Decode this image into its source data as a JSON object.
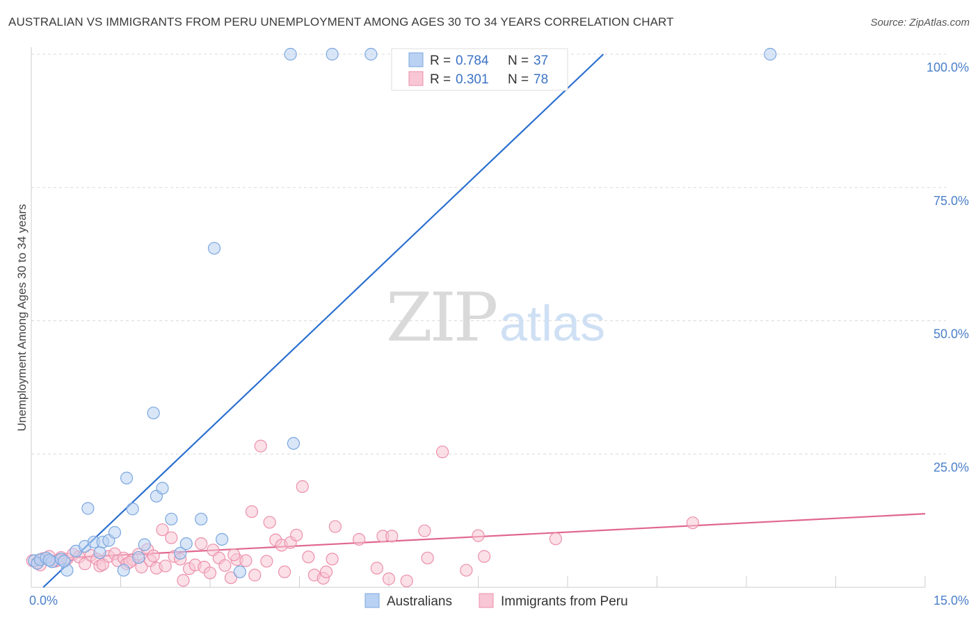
{
  "title": "AUSTRALIAN VS IMMIGRANTS FROM PERU UNEMPLOYMENT AMONG AGES 30 TO 34 YEARS CORRELATION CHART",
  "source": "Source: ZipAtlas.com",
  "watermark": {
    "zip": "ZIP",
    "atlas": "atlas"
  },
  "colors": {
    "blue_fill": "#b9d1f2",
    "blue_stroke": "#7aa6df",
    "blue_line": "#2a6fcf",
    "pink_fill": "#f8c6d4",
    "pink_stroke": "#ec8fab",
    "pink_line": "#e0668f",
    "grid": "#d8d8d8",
    "tick_text": "#4a7fc9"
  },
  "legend": [
    {
      "r_label": "R =",
      "r_value": "0.784",
      "n_label": "N =",
      "n_value": "37",
      "series": "Australians"
    },
    {
      "r_label": "R =",
      "r_value": "0.301",
      "n_label": "N =",
      "n_value": "78",
      "series": "Immigrants from Peru"
    }
  ],
  "chart_data": {
    "type": "scatter",
    "title": "AUSTRALIAN VS IMMIGRANTS FROM PERU UNEMPLOYMENT AMONG AGES 30 TO 34 YEARS CORRELATION CHART",
    "xlabel": "",
    "ylabel": "Unemployment Among Ages 30 to 34 years",
    "xlim": [
      0,
      15
    ],
    "ylim": [
      0,
      100
    ],
    "x_ticks": [
      {
        "value": 0,
        "label": "0.0%"
      },
      {
        "value": 15,
        "label": "15.0%"
      }
    ],
    "y_ticks": [
      {
        "value": 25,
        "label": "25.0%"
      },
      {
        "value": 50,
        "label": "50.0%"
      },
      {
        "value": 75,
        "label": "75.0%"
      },
      {
        "value": 100,
        "label": "100.0%"
      }
    ],
    "series": [
      {
        "name": "Australians",
        "color": "blue",
        "trendline": {
          "x": [
            0.2,
            9.6
          ],
          "y": [
            0.0,
            100.0
          ]
        },
        "points": [
          [
            0.05,
            5.0
          ],
          [
            0.1,
            4.5
          ],
          [
            0.15,
            5.2
          ],
          [
            0.25,
            5.5
          ],
          [
            0.35,
            4.8
          ],
          [
            0.5,
            5.3
          ],
          [
            0.6,
            3.2
          ],
          [
            0.55,
            4.9
          ],
          [
            0.75,
            6.8
          ],
          [
            0.9,
            7.7
          ],
          [
            0.95,
            14.8
          ],
          [
            1.05,
            8.5
          ],
          [
            1.15,
            6.5
          ],
          [
            1.2,
            8.5
          ],
          [
            1.3,
            8.8
          ],
          [
            1.4,
            10.3
          ],
          [
            1.6,
            20.5
          ],
          [
            1.55,
            3.2
          ],
          [
            1.7,
            14.7
          ],
          [
            1.9,
            8.0
          ],
          [
            2.05,
            32.7
          ],
          [
            2.1,
            17.1
          ],
          [
            2.2,
            18.6
          ],
          [
            2.35,
            12.8
          ],
          [
            2.5,
            6.4
          ],
          [
            2.6,
            8.2
          ],
          [
            2.85,
            12.8
          ],
          [
            3.2,
            9.0
          ],
          [
            3.07,
            63.6
          ],
          [
            3.5,
            2.9
          ],
          [
            4.4,
            27.0
          ],
          [
            4.35,
            100.0
          ],
          [
            5.05,
            100.0
          ],
          [
            5.7,
            100.0
          ],
          [
            12.4,
            100.0
          ],
          [
            0.3,
            5.1
          ],
          [
            1.8,
            5.6
          ]
        ]
      },
      {
        "name": "Immigrants from Peru",
        "color": "pink",
        "trendline": {
          "x": [
            0.0,
            15.0
          ],
          "y": [
            5.2,
            13.8
          ]
        },
        "points": [
          [
            0.02,
            5.0
          ],
          [
            0.1,
            4.6
          ],
          [
            0.2,
            5.4
          ],
          [
            0.3,
            5.8
          ],
          [
            0.4,
            4.9
          ],
          [
            0.5,
            5.6
          ],
          [
            0.6,
            5.3
          ],
          [
            0.7,
            6.2
          ],
          [
            0.8,
            5.7
          ],
          [
            0.9,
            4.4
          ],
          [
            1.0,
            6.0
          ],
          [
            1.1,
            5.3
          ],
          [
            1.15,
            4.0
          ],
          [
            1.2,
            4.3
          ],
          [
            1.3,
            5.8
          ],
          [
            1.4,
            6.3
          ],
          [
            1.45,
            5.0
          ],
          [
            1.55,
            5.5
          ],
          [
            1.6,
            4.4
          ],
          [
            1.7,
            5.2
          ],
          [
            1.8,
            6.2
          ],
          [
            1.85,
            3.8
          ],
          [
            1.95,
            7.1
          ],
          [
            2.0,
            5.0
          ],
          [
            2.1,
            3.6
          ],
          [
            2.2,
            10.8
          ],
          [
            2.25,
            4.0
          ],
          [
            2.35,
            9.3
          ],
          [
            2.4,
            5.8
          ],
          [
            2.5,
            5.3
          ],
          [
            2.55,
            1.3
          ],
          [
            2.65,
            3.5
          ],
          [
            2.75,
            4.2
          ],
          [
            2.85,
            8.2
          ],
          [
            2.9,
            3.8
          ],
          [
            3.0,
            2.7
          ],
          [
            3.05,
            7.0
          ],
          [
            3.15,
            5.5
          ],
          [
            3.25,
            4.1
          ],
          [
            3.35,
            1.8
          ],
          [
            3.45,
            5.2
          ],
          [
            3.6,
            5.0
          ],
          [
            3.7,
            14.2
          ],
          [
            3.75,
            2.3
          ],
          [
            3.85,
            26.5
          ],
          [
            3.95,
            4.9
          ],
          [
            4.0,
            12.2
          ],
          [
            4.1,
            8.9
          ],
          [
            4.2,
            7.9
          ],
          [
            4.25,
            2.9
          ],
          [
            4.35,
            8.4
          ],
          [
            4.45,
            9.8
          ],
          [
            4.55,
            18.9
          ],
          [
            4.65,
            5.7
          ],
          [
            4.75,
            2.3
          ],
          [
            4.9,
            1.7
          ],
          [
            4.95,
            2.9
          ],
          [
            5.05,
            5.3
          ],
          [
            5.1,
            11.4
          ],
          [
            5.5,
            9.0
          ],
          [
            5.8,
            3.6
          ],
          [
            5.9,
            9.6
          ],
          [
            6.0,
            1.6
          ],
          [
            6.05,
            9.6
          ],
          [
            6.3,
            1.2
          ],
          [
            6.6,
            10.6
          ],
          [
            6.65,
            5.5
          ],
          [
            6.9,
            25.4
          ],
          [
            7.3,
            3.2
          ],
          [
            7.5,
            9.7
          ],
          [
            7.6,
            5.8
          ],
          [
            8.8,
            9.1
          ],
          [
            11.1,
            12.1
          ],
          [
            0.15,
            4.2
          ],
          [
            0.45,
            5.1
          ],
          [
            1.65,
            4.7
          ],
          [
            2.05,
            5.9
          ],
          [
            3.4,
            6.1
          ]
        ]
      }
    ]
  },
  "bottom_legend": [
    {
      "label": "Australians"
    },
    {
      "label": "Immigrants from Peru"
    }
  ]
}
